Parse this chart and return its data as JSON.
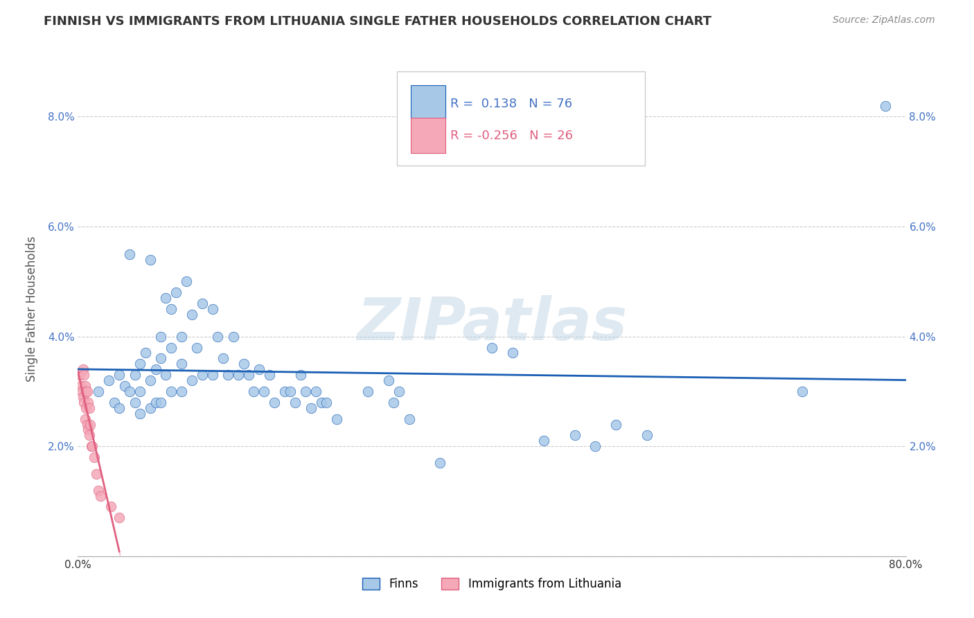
{
  "title": "FINNISH VS IMMIGRANTS FROM LITHUANIA SINGLE FATHER HOUSEHOLDS CORRELATION CHART",
  "source": "Source: ZipAtlas.com",
  "ylabel": "Single Father Households",
  "watermark": "ZIPatlas",
  "r_finn": 0.138,
  "n_finn": 76,
  "r_lith": -0.256,
  "n_lith": 26,
  "xlim": [
    0.0,
    0.8
  ],
  "ylim": [
    0.0,
    0.09
  ],
  "yticks": [
    0.0,
    0.02,
    0.04,
    0.06,
    0.08
  ],
  "ytick_labels": [
    "",
    "2.0%",
    "4.0%",
    "6.0%",
    "8.0%"
  ],
  "xticks": [
    0.0,
    0.1,
    0.2,
    0.3,
    0.4,
    0.5,
    0.6,
    0.7,
    0.8
  ],
  "xtick_labels": [
    "0.0%",
    "",
    "",
    "",
    "",
    "",
    "",
    "",
    "80.0%"
  ],
  "color_finn": "#a8c8e8",
  "color_lith": "#f4a8b8",
  "line_color_finn": "#1a5fb4",
  "line_color_lith": "#e06080",
  "legend1_label": "Finns",
  "legend2_label": "Immigrants from Lithuania",
  "finns_x": [
    0.02,
    0.03,
    0.035,
    0.04,
    0.04,
    0.045,
    0.05,
    0.05,
    0.055,
    0.055,
    0.06,
    0.06,
    0.06,
    0.065,
    0.07,
    0.07,
    0.07,
    0.075,
    0.075,
    0.08,
    0.08,
    0.08,
    0.085,
    0.085,
    0.09,
    0.09,
    0.09,
    0.095,
    0.1,
    0.1,
    0.1,
    0.105,
    0.11,
    0.11,
    0.115,
    0.12,
    0.12,
    0.13,
    0.13,
    0.135,
    0.14,
    0.145,
    0.15,
    0.155,
    0.16,
    0.165,
    0.17,
    0.175,
    0.18,
    0.185,
    0.19,
    0.2,
    0.205,
    0.21,
    0.215,
    0.22,
    0.225,
    0.23,
    0.235,
    0.24,
    0.25,
    0.28,
    0.3,
    0.305,
    0.31,
    0.32,
    0.35,
    0.4,
    0.42,
    0.45,
    0.48,
    0.5,
    0.52,
    0.55,
    0.7,
    0.78
  ],
  "finns_y": [
    0.03,
    0.032,
    0.028,
    0.033,
    0.027,
    0.031,
    0.055,
    0.03,
    0.033,
    0.028,
    0.035,
    0.03,
    0.026,
    0.037,
    0.054,
    0.032,
    0.027,
    0.034,
    0.028,
    0.04,
    0.036,
    0.028,
    0.047,
    0.033,
    0.045,
    0.038,
    0.03,
    0.048,
    0.04,
    0.035,
    0.03,
    0.05,
    0.044,
    0.032,
    0.038,
    0.046,
    0.033,
    0.045,
    0.033,
    0.04,
    0.036,
    0.033,
    0.04,
    0.033,
    0.035,
    0.033,
    0.03,
    0.034,
    0.03,
    0.033,
    0.028,
    0.03,
    0.03,
    0.028,
    0.033,
    0.03,
    0.027,
    0.03,
    0.028,
    0.028,
    0.025,
    0.03,
    0.032,
    0.028,
    0.03,
    0.025,
    0.017,
    0.038,
    0.037,
    0.021,
    0.022,
    0.02,
    0.024,
    0.022,
    0.03,
    0.082
  ],
  "lith_x": [
    0.002,
    0.003,
    0.004,
    0.005,
    0.005,
    0.006,
    0.006,
    0.007,
    0.007,
    0.008,
    0.008,
    0.009,
    0.009,
    0.01,
    0.01,
    0.011,
    0.011,
    0.012,
    0.013,
    0.014,
    0.016,
    0.018,
    0.02,
    0.022,
    0.032,
    0.04
  ],
  "lith_y": [
    0.033,
    0.031,
    0.03,
    0.034,
    0.029,
    0.033,
    0.028,
    0.031,
    0.025,
    0.03,
    0.027,
    0.03,
    0.024,
    0.028,
    0.023,
    0.027,
    0.022,
    0.024,
    0.02,
    0.02,
    0.018,
    0.015,
    0.012,
    0.011,
    0.009,
    0.007
  ]
}
